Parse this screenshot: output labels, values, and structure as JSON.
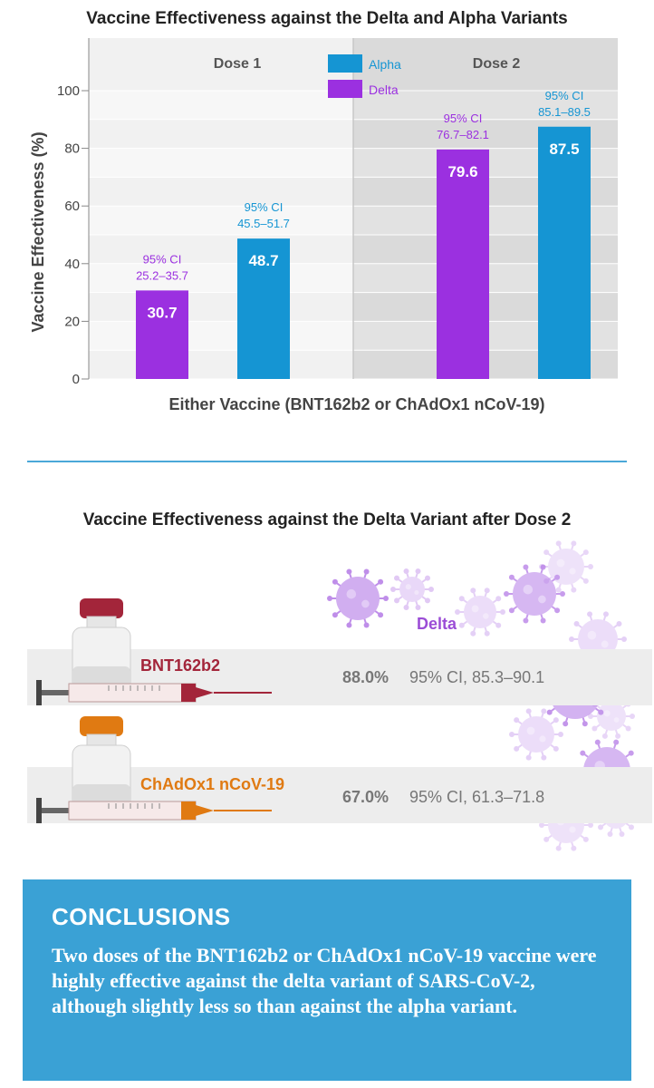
{
  "chart_data": [
    {
      "type": "bar",
      "title": "Vaccine Effectiveness against the Delta and Alpha Variants",
      "xlabel": "Either Vaccine (BNT162b2 or ChAdOx1 nCoV-19)",
      "ylabel": "Vaccine Effectiveness (%)",
      "ylim": [
        0,
        100
      ],
      "yticks": [
        0,
        20,
        40,
        60,
        80,
        100
      ],
      "grid": true,
      "legend_position": "top-center",
      "categories": [
        "Dose 1",
        "Dose 2"
      ],
      "series": [
        {
          "name": "Delta",
          "color": "#9b30e0",
          "values": [
            30.7,
            79.6
          ],
          "value_labels": [
            "30.7",
            "79.6"
          ],
          "ci_label": [
            "95% CI",
            "95% CI"
          ],
          "ci_range": [
            "25.2–35.7",
            "76.7–82.1"
          ]
        },
        {
          "name": "Alpha",
          "color": "#1595d3",
          "values": [
            48.7,
            87.5
          ],
          "value_labels": [
            "48.7",
            "87.5"
          ],
          "ci_label": [
            "95% CI",
            "95% CI"
          ],
          "ci_range": [
            "45.5–51.7",
            "85.1–89.5"
          ]
        }
      ]
    },
    {
      "type": "table",
      "title": "Vaccine Effectiveness against the Delta Variant after Dose 2",
      "column_label": "Delta",
      "rows": [
        {
          "vaccine": "BNT162b2",
          "value": 88.0,
          "value_label": "88.0%",
          "ci": "95% CI, 85.3–90.1",
          "accent": "#a3253a"
        },
        {
          "vaccine": "ChAdOx1 nCoV-19",
          "value": 67.0,
          "value_label": "67.0%",
          "ci": "95% CI, 61.3–71.8",
          "accent": "#e07a12"
        }
      ]
    }
  ],
  "colors": {
    "delta": "#9b30e0",
    "alpha": "#1595d3",
    "conclusions_bg": "#3aa1d5"
  },
  "conclusions": {
    "heading": "CONCLUSIONS",
    "body": "Two doses of the BNT162b2 or ChAdOx1 nCoV-19 vaccine were highly effective against the delta variant of SARS-CoV-2, although slightly less so than against the alpha variant."
  }
}
